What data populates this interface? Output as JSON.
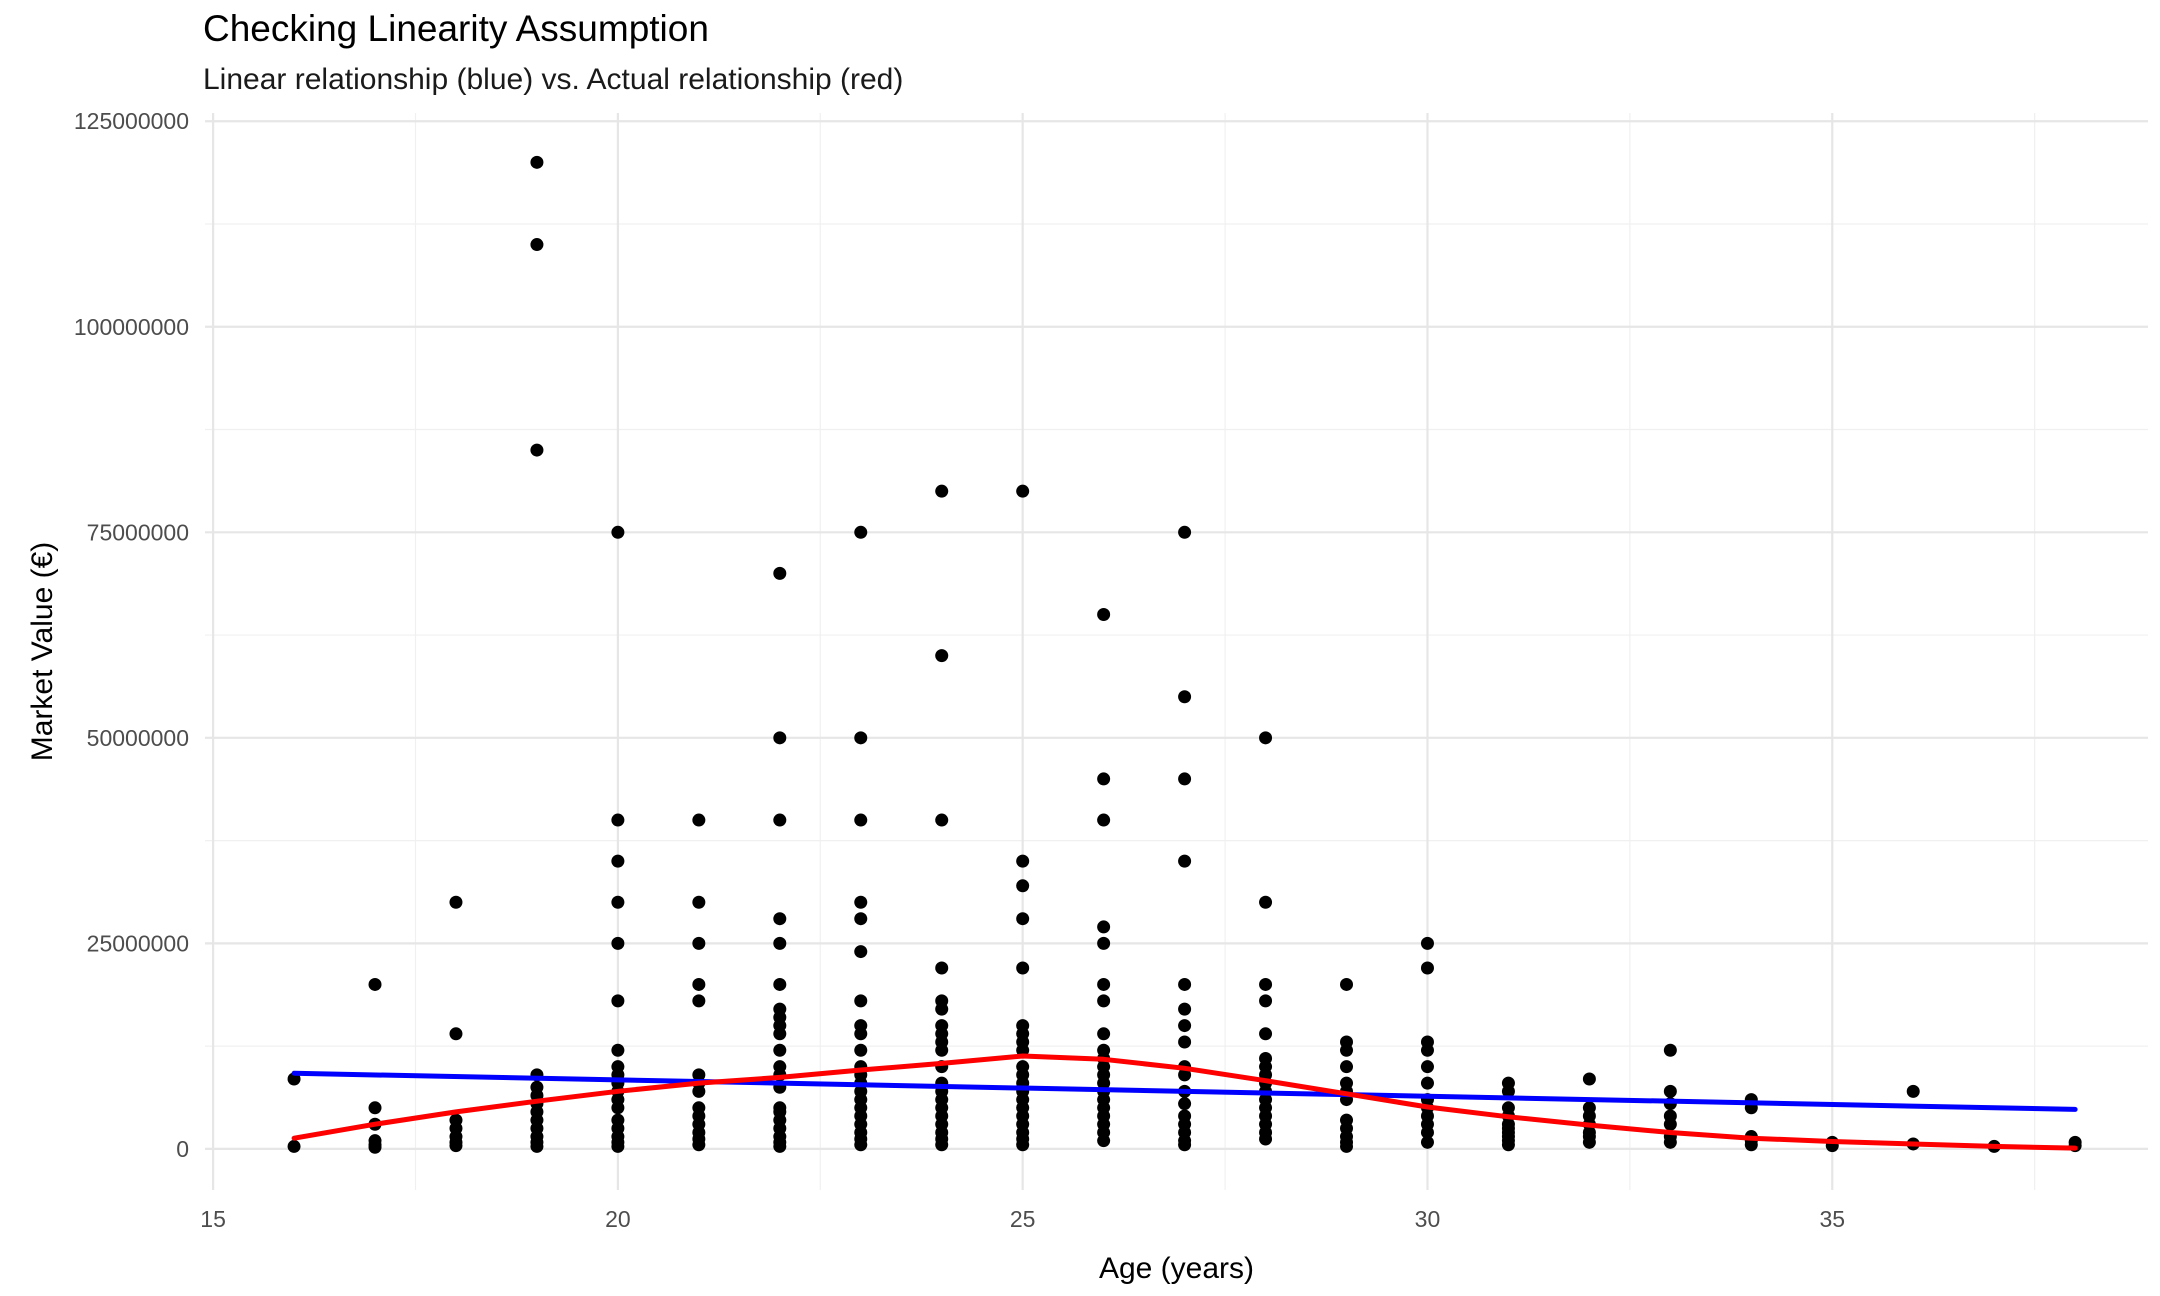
{
  "chart_data": {
    "type": "scatter",
    "title": "Checking Linearity Assumption",
    "subtitle": "Linear relationship (blue) vs. Actual relationship (red)",
    "xlabel": "Age (years)",
    "ylabel": "Market Value (€)",
    "xlim": [
      14.9,
      38.9
    ],
    "ylim": [
      -5000000,
      126000000
    ],
    "x_ticks": [
      15,
      20,
      25,
      30,
      35
    ],
    "x_tick_labels": [
      "15",
      "20",
      "25",
      "30",
      "35"
    ],
    "y_ticks": [
      0,
      25000000,
      50000000,
      75000000,
      100000000,
      125000000
    ],
    "y_tick_labels": [
      "0",
      "25000000",
      "50000000",
      "75000000",
      "100000000",
      "125000000"
    ],
    "grid": true,
    "colors": {
      "points": "#000000",
      "linear_fit": "#0000FF",
      "loess_fit": "#FF0000",
      "grid": "#e6e6e6"
    },
    "points": [
      [
        16,
        8500000
      ],
      [
        16,
        300000
      ],
      [
        17,
        20000000
      ],
      [
        17,
        5000000
      ],
      [
        17,
        3000000
      ],
      [
        17,
        1000000
      ],
      [
        17,
        500000
      ],
      [
        17,
        200000
      ],
      [
        18,
        30000000
      ],
      [
        18,
        14000000
      ],
      [
        18,
        3500000
      ],
      [
        18,
        2500000
      ],
      [
        18,
        1500000
      ],
      [
        18,
        800000
      ],
      [
        18,
        400000
      ],
      [
        19,
        120000000
      ],
      [
        19,
        110000000
      ],
      [
        19,
        85000000
      ],
      [
        19,
        9000000
      ],
      [
        19,
        7500000
      ],
      [
        19,
        6500000
      ],
      [
        19,
        5500000
      ],
      [
        19,
        4500000
      ],
      [
        19,
        3500000
      ],
      [
        19,
        2500000
      ],
      [
        19,
        1500000
      ],
      [
        19,
        800000
      ],
      [
        19,
        300000
      ],
      [
        20,
        75000000
      ],
      [
        20,
        40000000
      ],
      [
        20,
        35000000
      ],
      [
        20,
        30000000
      ],
      [
        20,
        25000000
      ],
      [
        20,
        18000000
      ],
      [
        20,
        12000000
      ],
      [
        20,
        10000000
      ],
      [
        20,
        9000000
      ],
      [
        20,
        8000000
      ],
      [
        20,
        7000000
      ],
      [
        20,
        6000000
      ],
      [
        20,
        5000000
      ],
      [
        20,
        3500000
      ],
      [
        20,
        2500000
      ],
      [
        20,
        1500000
      ],
      [
        20,
        800000
      ],
      [
        20,
        300000
      ],
      [
        21,
        40000000
      ],
      [
        21,
        30000000
      ],
      [
        21,
        25000000
      ],
      [
        21,
        20000000
      ],
      [
        21,
        18000000
      ],
      [
        21,
        9000000
      ],
      [
        21,
        8000000
      ],
      [
        21,
        7000000
      ],
      [
        21,
        5000000
      ],
      [
        21,
        4000000
      ],
      [
        21,
        3000000
      ],
      [
        21,
        2000000
      ],
      [
        21,
        1200000
      ],
      [
        21,
        500000
      ],
      [
        22,
        70000000
      ],
      [
        22,
        50000000
      ],
      [
        22,
        40000000
      ],
      [
        22,
        28000000
      ],
      [
        22,
        25000000
      ],
      [
        22,
        20000000
      ],
      [
        22,
        17000000
      ],
      [
        22,
        16000000
      ],
      [
        22,
        15000000
      ],
      [
        22,
        14000000
      ],
      [
        22,
        12000000
      ],
      [
        22,
        10000000
      ],
      [
        22,
        9000000
      ],
      [
        22,
        7500000
      ],
      [
        22,
        5000000
      ],
      [
        22,
        4500000
      ],
      [
        22,
        3500000
      ],
      [
        22,
        2500000
      ],
      [
        22,
        1500000
      ],
      [
        22,
        800000
      ],
      [
        22,
        300000
      ],
      [
        23,
        75000000
      ],
      [
        23,
        50000000
      ],
      [
        23,
        40000000
      ],
      [
        23,
        30000000
      ],
      [
        23,
        28000000
      ],
      [
        23,
        24000000
      ],
      [
        23,
        18000000
      ],
      [
        23,
        15000000
      ],
      [
        23,
        14000000
      ],
      [
        23,
        12000000
      ],
      [
        23,
        10000000
      ],
      [
        23,
        9000000
      ],
      [
        23,
        8000000
      ],
      [
        23,
        7000000
      ],
      [
        23,
        6000000
      ],
      [
        23,
        5000000
      ],
      [
        23,
        4000000
      ],
      [
        23,
        3000000
      ],
      [
        23,
        2000000
      ],
      [
        23,
        1200000
      ],
      [
        23,
        500000
      ],
      [
        24,
        80000000
      ],
      [
        24,
        60000000
      ],
      [
        24,
        40000000
      ],
      [
        24,
        22000000
      ],
      [
        24,
        18000000
      ],
      [
        24,
        17000000
      ],
      [
        24,
        15000000
      ],
      [
        24,
        14000000
      ],
      [
        24,
        13000000
      ],
      [
        24,
        12000000
      ],
      [
        24,
        10000000
      ],
      [
        24,
        8000000
      ],
      [
        24,
        7000000
      ],
      [
        24,
        6000000
      ],
      [
        24,
        5000000
      ],
      [
        24,
        4000000
      ],
      [
        24,
        3000000
      ],
      [
        24,
        2000000
      ],
      [
        24,
        1200000
      ],
      [
        24,
        500000
      ],
      [
        25,
        80000000
      ],
      [
        25,
        35000000
      ],
      [
        25,
        32000000
      ],
      [
        25,
        28000000
      ],
      [
        25,
        22000000
      ],
      [
        25,
        15000000
      ],
      [
        25,
        14000000
      ],
      [
        25,
        13000000
      ],
      [
        25,
        12000000
      ],
      [
        25,
        10000000
      ],
      [
        25,
        9000000
      ],
      [
        25,
        8000000
      ],
      [
        25,
        7000000
      ],
      [
        25,
        6000000
      ],
      [
        25,
        5000000
      ],
      [
        25,
        4000000
      ],
      [
        25,
        3000000
      ],
      [
        25,
        2000000
      ],
      [
        25,
        1200000
      ],
      [
        25,
        500000
      ],
      [
        26,
        65000000
      ],
      [
        26,
        45000000
      ],
      [
        26,
        40000000
      ],
      [
        26,
        27000000
      ],
      [
        26,
        25000000
      ],
      [
        26,
        20000000
      ],
      [
        26,
        18000000
      ],
      [
        26,
        14000000
      ],
      [
        26,
        12000000
      ],
      [
        26,
        11000000
      ],
      [
        26,
        10000000
      ],
      [
        26,
        9000000
      ],
      [
        26,
        8000000
      ],
      [
        26,
        7000000
      ],
      [
        26,
        6000000
      ],
      [
        26,
        5000000
      ],
      [
        26,
        4000000
      ],
      [
        26,
        3000000
      ],
      [
        26,
        2000000
      ],
      [
        26,
        1000000
      ],
      [
        27,
        75000000
      ],
      [
        27,
        55000000
      ],
      [
        27,
        45000000
      ],
      [
        27,
        35000000
      ],
      [
        27,
        20000000
      ],
      [
        27,
        17000000
      ],
      [
        27,
        15000000
      ],
      [
        27,
        13000000
      ],
      [
        27,
        10000000
      ],
      [
        27,
        9000000
      ],
      [
        27,
        7000000
      ],
      [
        27,
        5500000
      ],
      [
        27,
        4000000
      ],
      [
        27,
        3000000
      ],
      [
        27,
        2000000
      ],
      [
        27,
        1000000
      ],
      [
        27,
        500000
      ],
      [
        28,
        50000000
      ],
      [
        28,
        30000000
      ],
      [
        28,
        20000000
      ],
      [
        28,
        18000000
      ],
      [
        28,
        14000000
      ],
      [
        28,
        11000000
      ],
      [
        28,
        10000000
      ],
      [
        28,
        9000000
      ],
      [
        28,
        8000000
      ],
      [
        28,
        7000000
      ],
      [
        28,
        6000000
      ],
      [
        28,
        5000000
      ],
      [
        28,
        4000000
      ],
      [
        28,
        3000000
      ],
      [
        28,
        2000000
      ],
      [
        28,
        1200000
      ],
      [
        29,
        20000000
      ],
      [
        29,
        13000000
      ],
      [
        29,
        12000000
      ],
      [
        29,
        10000000
      ],
      [
        29,
        8000000
      ],
      [
        29,
        7000000
      ],
      [
        29,
        6000000
      ],
      [
        29,
        3500000
      ],
      [
        29,
        2500000
      ],
      [
        29,
        1500000
      ],
      [
        29,
        800000
      ],
      [
        29,
        300000
      ],
      [
        30,
        25000000
      ],
      [
        30,
        22000000
      ],
      [
        30,
        13000000
      ],
      [
        30,
        12000000
      ],
      [
        30,
        10000000
      ],
      [
        30,
        8000000
      ],
      [
        30,
        6000000
      ],
      [
        30,
        5000000
      ],
      [
        30,
        4000000
      ],
      [
        30,
        3000000
      ],
      [
        30,
        2000000
      ],
      [
        30,
        800000
      ],
      [
        31,
        8000000
      ],
      [
        31,
        7000000
      ],
      [
        31,
        5000000
      ],
      [
        31,
        4000000
      ],
      [
        31,
        3000000
      ],
      [
        31,
        2500000
      ],
      [
        31,
        2000000
      ],
      [
        31,
        1500000
      ],
      [
        31,
        1000000
      ],
      [
        31,
        500000
      ],
      [
        32,
        8500000
      ],
      [
        32,
        5000000
      ],
      [
        32,
        4000000
      ],
      [
        32,
        3000000
      ],
      [
        32,
        2000000
      ],
      [
        32,
        1500000
      ],
      [
        32,
        800000
      ],
      [
        33,
        12000000
      ],
      [
        33,
        7000000
      ],
      [
        33,
        5500000
      ],
      [
        33,
        4000000
      ],
      [
        33,
        3000000
      ],
      [
        33,
        1500000
      ],
      [
        33,
        800000
      ],
      [
        34,
        6000000
      ],
      [
        34,
        5000000
      ],
      [
        34,
        1500000
      ],
      [
        34,
        1000000
      ],
      [
        34,
        500000
      ],
      [
        35,
        800000
      ],
      [
        35,
        400000
      ],
      [
        36,
        7000000
      ],
      [
        36,
        600000
      ],
      [
        37,
        300000
      ],
      [
        38,
        800000
      ],
      [
        38,
        400000
      ]
    ],
    "lines": [
      {
        "name": "Linear relationship",
        "color": "#0000FF",
        "x": [
          16,
          38
        ],
        "y": [
          9200000,
          4800000
        ]
      },
      {
        "name": "Actual relationship",
        "color": "#FF0000",
        "x": [
          16,
          17,
          18,
          19,
          20,
          21,
          22,
          23,
          24,
          25,
          26,
          27,
          28,
          29,
          30,
          31,
          32,
          33,
          34,
          35,
          36,
          37,
          38
        ],
        "y": [
          1300000,
          3000000,
          4500000,
          5800000,
          7000000,
          8000000,
          8700000,
          9600000,
          10400000,
          11300000,
          10900000,
          9800000,
          8300000,
          6700000,
          5100000,
          3900000,
          2900000,
          2000000,
          1300000,
          900000,
          600000,
          300000,
          100000
        ]
      }
    ]
  }
}
